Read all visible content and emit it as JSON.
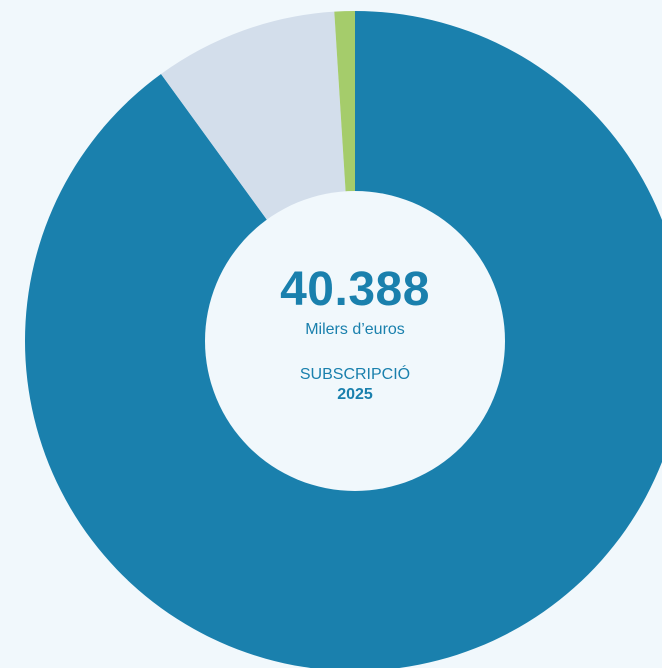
{
  "center": {
    "total": "40.388",
    "unit": "Milers d’euros",
    "caption": "SUBSCRIPCIÓ",
    "year": "2025"
  },
  "chart_data": {
    "type": "pie",
    "style": "donut",
    "total_value": 40388,
    "units": "Milers d’euros",
    "slices": [
      {
        "value_share": 0.9,
        "color": "#1a80ad"
      },
      {
        "value_share": 0.09,
        "color": "#d3deeb"
      },
      {
        "value_share": 0.01,
        "color": "#a5cc6b"
      }
    ],
    "start": "top",
    "direction": "clockwise",
    "legend": "none"
  },
  "colors": {
    "background": "#f1f8fc",
    "hole": "#f1f8fc",
    "primary": "#1a80ad",
    "secondary": "#d3deeb",
    "accent": "#a5cc6b"
  }
}
